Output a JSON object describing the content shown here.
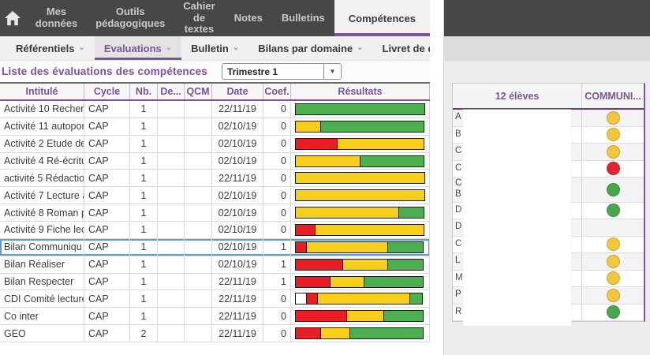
{
  "colors": {
    "accent_purple": "#7d529c",
    "nav_bg": "#474747",
    "selected_row_blue": "#5b9bd5",
    "bar": {
      "green": "#4CAF50",
      "yellow": "#F7CF1B",
      "red": "#EA1C24",
      "white": "#FFFFFF"
    },
    "dot": {
      "green": "#47A64E",
      "yellow": "#F3C73D",
      "red": "#E6232E"
    }
  },
  "topnav": {
    "items": [
      "Mes données",
      "Outils pédagogiques",
      "Cahier de textes",
      "Notes",
      "Bulletins"
    ],
    "active_label": "Compétences"
  },
  "subnav": {
    "items": [
      "Référentiels",
      "Evaluations",
      "Bulletin",
      "Bilans par domaine",
      "Livret de compétences"
    ],
    "active_index": 1,
    "chevron": "⌄"
  },
  "toolbar": {
    "title": "Liste des évaluations des compétences",
    "period_value": "Trimestre 1",
    "select_arrow": "▼"
  },
  "eval_table": {
    "columns": [
      "Intitulé",
      "Cycle",
      "Nb.",
      "De...",
      "QCM",
      "Date",
      "Coef.",
      "Résultats"
    ],
    "sort_column_index": 0,
    "sort_glyph": "▲",
    "rows": [
      {
        "title": "Activité 10 Recherc",
        "cycle": "CAP",
        "nb": "1",
        "de": "",
        "qcm": "",
        "date": "22/11/19",
        "coef": "0",
        "selected": false,
        "segments": [
          [
            "green",
            100
          ]
        ]
      },
      {
        "title": "Activité 11 autopor",
        "cycle": "CAP",
        "nb": "1",
        "de": "",
        "qcm": "",
        "date": "02/10/19",
        "coef": "0",
        "selected": false,
        "segments": [
          [
            "yellow",
            20
          ],
          [
            "green",
            80
          ]
        ]
      },
      {
        "title": "Activité 2 Etude de",
        "cycle": "CAP",
        "nb": "1",
        "de": "",
        "qcm": "",
        "date": "02/10/19",
        "coef": "0",
        "selected": false,
        "segments": [
          [
            "red",
            33
          ],
          [
            "yellow",
            67
          ]
        ]
      },
      {
        "title": "Activité 4 Ré-écritu",
        "cycle": "CAP",
        "nb": "1",
        "de": "",
        "qcm": "",
        "date": "02/10/19",
        "coef": "0",
        "selected": false,
        "segments": [
          [
            "yellow",
            50
          ],
          [
            "green",
            50
          ]
        ]
      },
      {
        "title": "activité 5 Rédactio",
        "cycle": "CAP",
        "nb": "1",
        "de": "",
        "qcm": "",
        "date": "22/11/19",
        "coef": "0",
        "selected": false,
        "segments": [
          [
            "yellow",
            100
          ]
        ]
      },
      {
        "title": "Activité 7 Lecture a",
        "cycle": "CAP",
        "nb": "1",
        "de": "",
        "qcm": "",
        "date": "02/10/19",
        "coef": "0",
        "selected": false,
        "segments": [
          [
            "yellow",
            100
          ]
        ]
      },
      {
        "title": "Activité 8 Roman p",
        "cycle": "CAP",
        "nb": "1",
        "de": "",
        "qcm": "",
        "date": "02/10/19",
        "coef": "0",
        "selected": false,
        "segments": [
          [
            "yellow",
            80
          ],
          [
            "green",
            20
          ]
        ]
      },
      {
        "title": "Activité 9 Fiche lec",
        "cycle": "CAP",
        "nb": "1",
        "de": "",
        "qcm": "",
        "date": "02/10/19",
        "coef": "0",
        "selected": false,
        "segments": [
          [
            "red",
            16
          ],
          [
            "yellow",
            84
          ]
        ]
      },
      {
        "title": "Bilan Communiqu",
        "cycle": "CAP",
        "nb": "1",
        "de": "",
        "qcm": "",
        "date": "02/10/19",
        "coef": "1",
        "selected": true,
        "segments": [
          [
            "red",
            9
          ],
          [
            "yellow",
            63
          ],
          [
            "green",
            28
          ]
        ]
      },
      {
        "title": "Bilan Réaliser",
        "cycle": "CAP",
        "nb": "1",
        "de": "",
        "qcm": "",
        "date": "02/10/19",
        "coef": "1",
        "selected": false,
        "segments": [
          [
            "red",
            37
          ],
          [
            "yellow",
            35
          ],
          [
            "green",
            28
          ]
        ]
      },
      {
        "title": "Bilan Respecter",
        "cycle": "CAP",
        "nb": "1",
        "de": "",
        "qcm": "",
        "date": "22/11/19",
        "coef": "1",
        "selected": false,
        "segments": [
          [
            "red",
            27
          ],
          [
            "yellow",
            27
          ],
          [
            "green",
            46
          ]
        ]
      },
      {
        "title": "CDI Comité lecture",
        "cycle": "CAP",
        "nb": "1",
        "de": "",
        "qcm": "",
        "date": "22/11/19",
        "coef": "0",
        "selected": false,
        "segments": [
          [
            "white",
            9
          ],
          [
            "red",
            9
          ],
          [
            "yellow",
            72
          ],
          [
            "green",
            10
          ]
        ]
      },
      {
        "title": "Co inter",
        "cycle": "CAP",
        "nb": "1",
        "de": "",
        "qcm": "",
        "date": "22/11/19",
        "coef": "0",
        "selected": false,
        "segments": [
          [
            "red",
            40
          ],
          [
            "yellow",
            29
          ],
          [
            "green",
            31
          ]
        ]
      },
      {
        "title": "GEO",
        "cycle": "CAP",
        "nb": "2",
        "de": "",
        "qcm": "",
        "date": "22/11/19",
        "coef": "0",
        "selected": false,
        "segments": [
          [
            "red",
            20
          ],
          [
            "yellow",
            23
          ],
          [
            "green",
            57
          ]
        ]
      }
    ]
  },
  "students_panel": {
    "header_left": "12 élèves",
    "header_right": "COMMUNI...",
    "sort_glyph": "▲",
    "rows": [
      {
        "letters": [
          "A"
        ],
        "dot": "yellow"
      },
      {
        "letters": [
          "B"
        ],
        "dot": "yellow"
      },
      {
        "letters": [
          "C"
        ],
        "dot": "yellow"
      },
      {
        "letters": [
          "C"
        ],
        "dot": "red"
      },
      {
        "letters": [
          "C",
          "B"
        ],
        "dot": "green"
      },
      {
        "letters": [
          "D"
        ],
        "dot": "green"
      },
      {
        "letters": [
          "D"
        ],
        "dot": null
      },
      {
        "letters": [
          "C"
        ],
        "dot": "yellow"
      },
      {
        "letters": [
          "L"
        ],
        "dot": "yellow"
      },
      {
        "letters": [
          "M"
        ],
        "dot": "yellow"
      },
      {
        "letters": [
          "P"
        ],
        "dot": "yellow"
      },
      {
        "letters": [
          "R"
        ],
        "dot": "green"
      }
    ]
  }
}
